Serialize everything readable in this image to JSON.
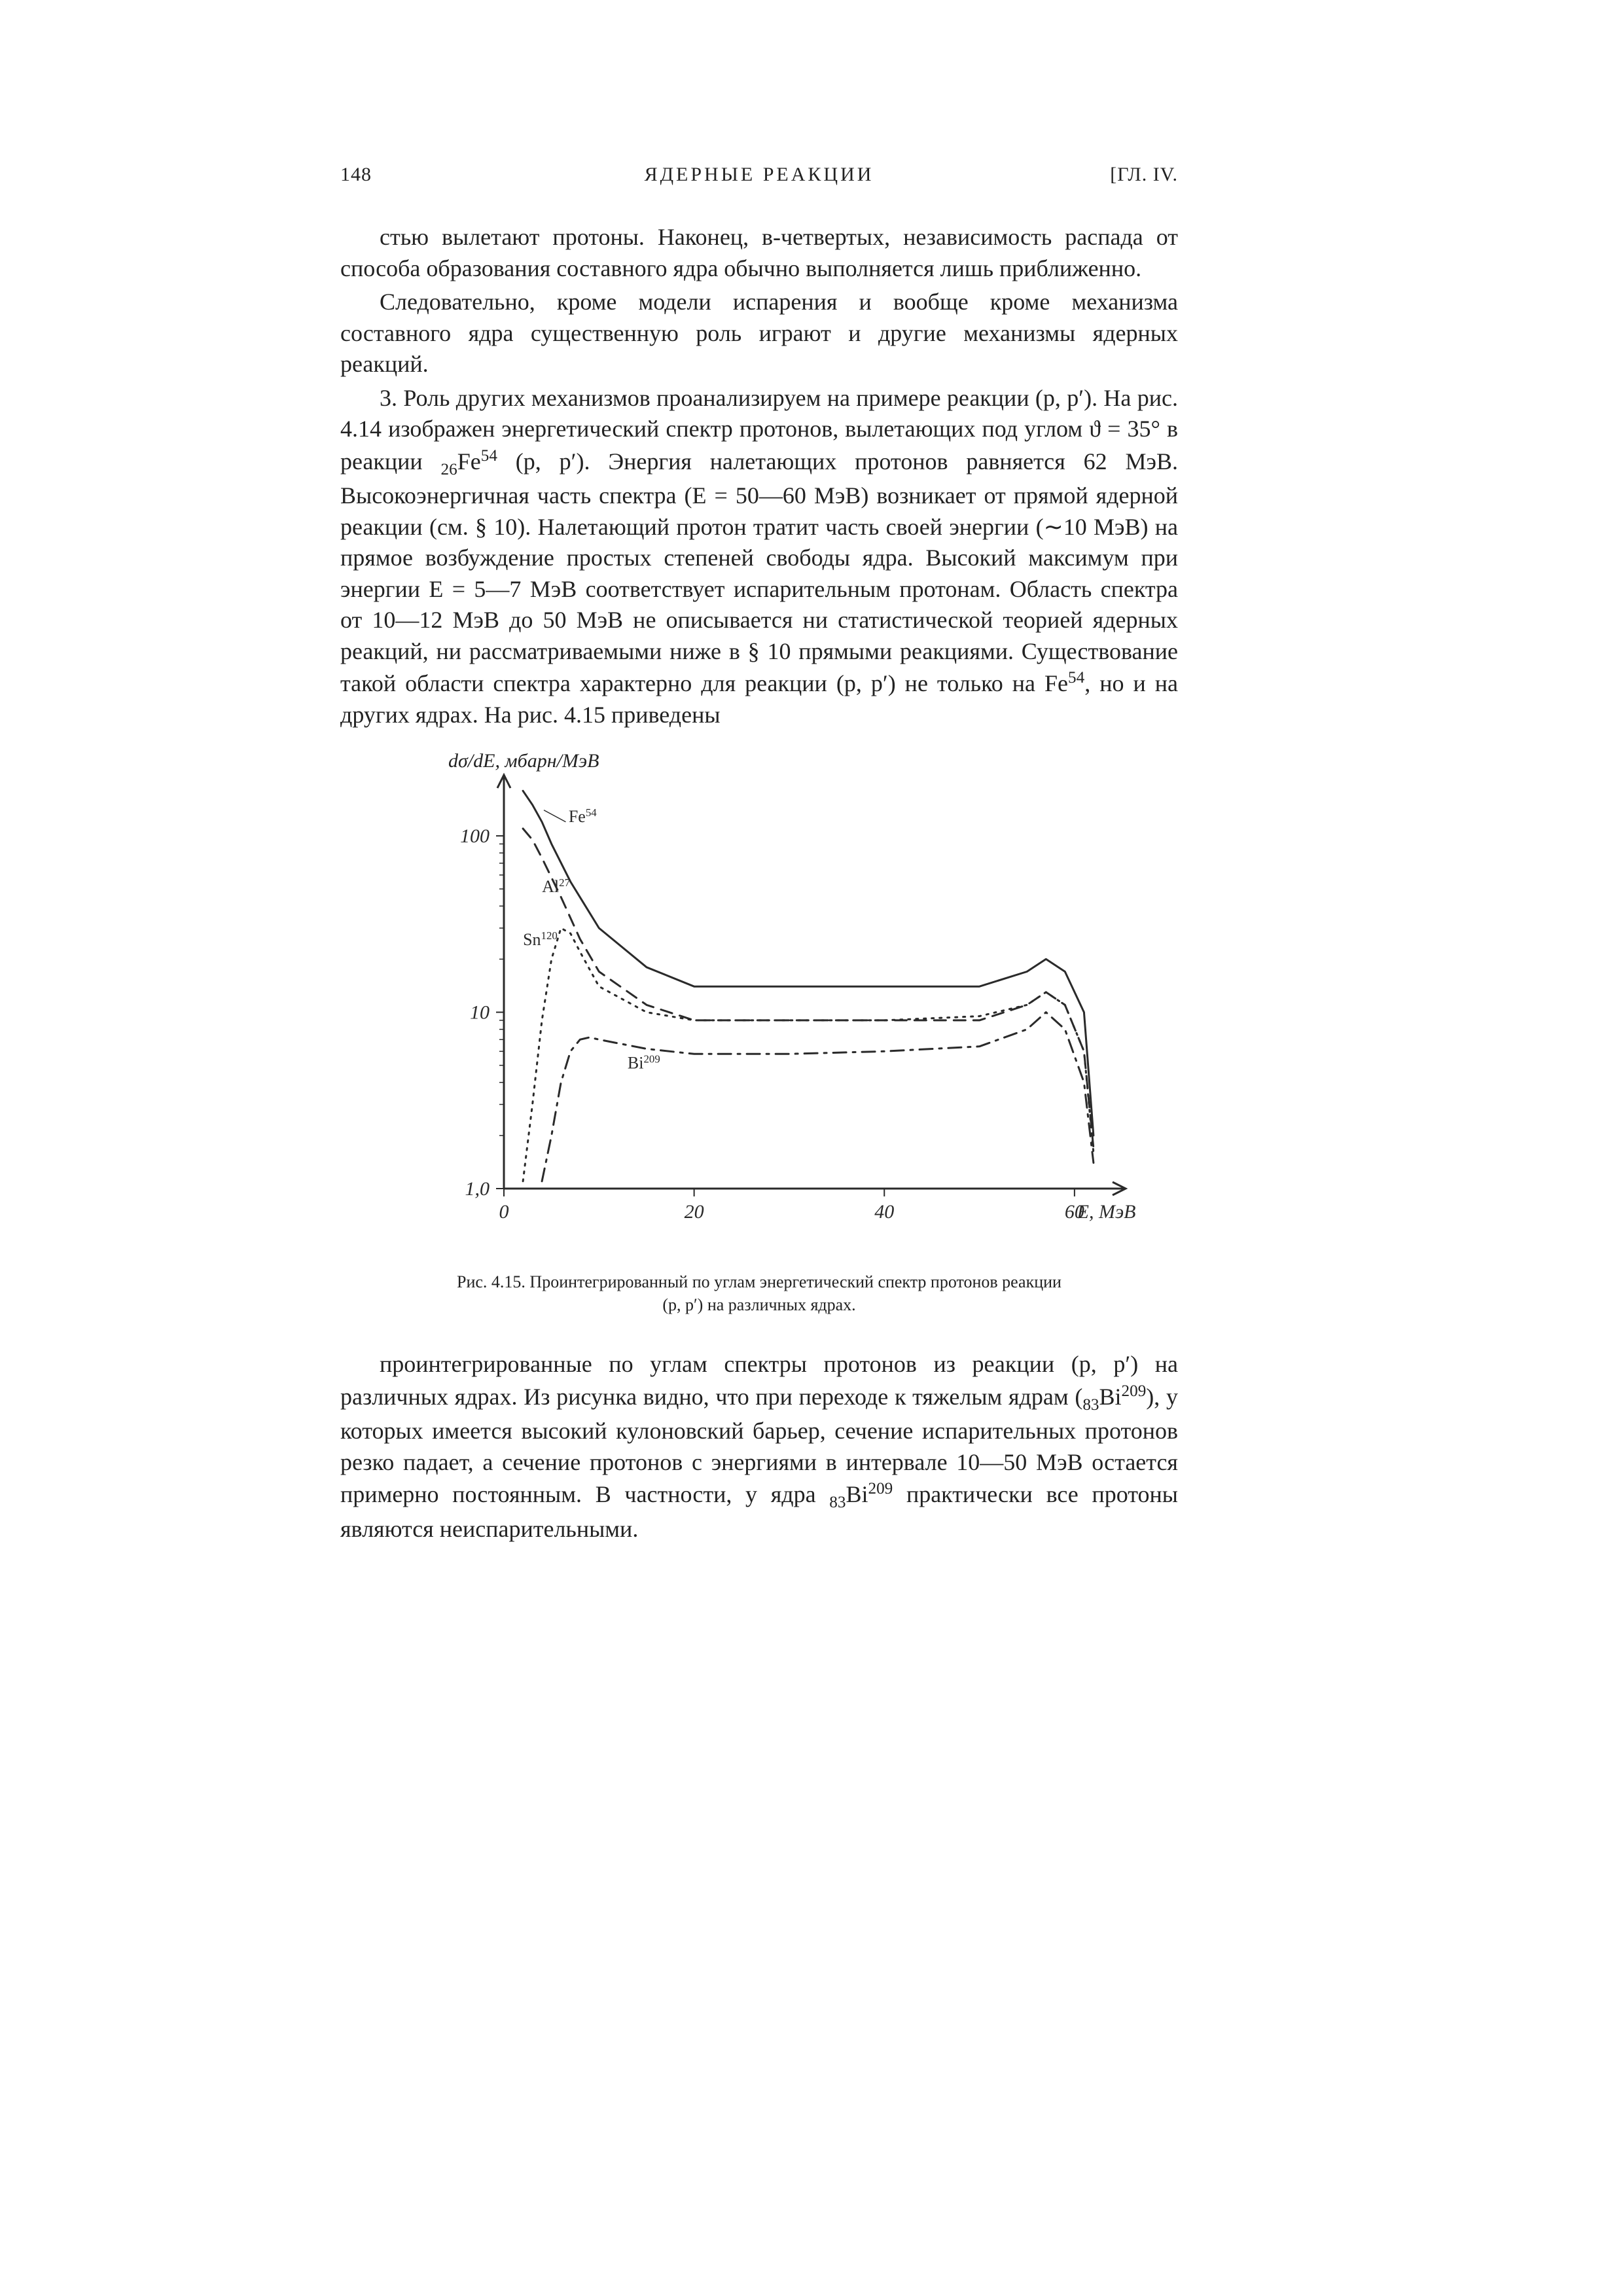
{
  "header": {
    "page_number": "148",
    "running_title": "ЯДЕРНЫЕ РЕАКЦИИ",
    "chapter_mark": "[ГЛ. IV."
  },
  "para1": "стью вылетают протоны. Наконец, в-четвертых, независимость распада от способа образования составного ядра обычно выполняется лишь приближенно.",
  "para2": "Следовательно, кроме модели испарения и вообще кроме механизма составного ядра существенную роль играют и другие механизмы ядерных реакций.",
  "para3_a": "3. Роль других механизмов проанализируем на примере реакции (p, p′). На рис. 4.14 изображен энергетический спектр протонов, вылетающих под углом ϑ = 35° в реакции ",
  "para3_nuc1_pre": "26",
  "para3_nuc1_el": "Fe",
  "para3_nuc1_sup": "54",
  "para3_b": " (p, p′). Энергия налетающих протонов равняется 62 МэВ. Высокоэнергичная часть спектра (E = 50—60 МэВ) возникает от прямой ядерной реакции (см. § 10). Налетающий протон тратит часть своей энергии (∼10 МэВ) на прямое возбуждение простых степеней свободы ядра. Высокий максимум при энергии E = 5—7 МэВ соответствует испарительным протонам. Область спектра от 10—12 МэВ до 50 МэВ не описывается ни статистической теорией ядерных реакций, ни рассматриваемыми ниже в § 10 прямыми реакциями. Существование такой области спектра характерно для реакции (p, p′) не только на Fe",
  "para3_sup2": "54",
  "para3_c": ", но и на других ядрах. На рис. 4.15 приведены",
  "chart": {
    "type": "line",
    "y_axis_label": "dσ/dE, мбарн/МэВ",
    "x_axis_label": "E, МэВ",
    "x_ticks": [
      "0",
      "20",
      "40",
      "60"
    ],
    "y_ticks": [
      "1,0",
      "10",
      "100"
    ],
    "y_scale": "log",
    "xlim": [
      0,
      64
    ],
    "ylim": [
      1,
      200
    ],
    "curve_labels": {
      "fe": "Fe⁵⁴",
      "al": "Al²⁷",
      "sn": "Sn¹²⁰",
      "bi": "Bi²⁰⁹"
    },
    "colors": {
      "axis": "#2a2a2a",
      "fe": "#2a2a2a",
      "al": "#2a2a2a",
      "sn": "#2a2a2a",
      "bi": "#2a2a2a",
      "bg": "#ffffff"
    },
    "stroke_width": 3,
    "font_size_axis": 30,
    "font_size_curve_label": 26,
    "series": {
      "fe": {
        "style": "solid",
        "points": [
          [
            2,
            180
          ],
          [
            3,
            150
          ],
          [
            4,
            120
          ],
          [
            5,
            90
          ],
          [
            7,
            55
          ],
          [
            10,
            30
          ],
          [
            15,
            18
          ],
          [
            20,
            14
          ],
          [
            30,
            14
          ],
          [
            40,
            14
          ],
          [
            50,
            14
          ],
          [
            55,
            17
          ],
          [
            57,
            20
          ],
          [
            59,
            17
          ],
          [
            61,
            10
          ],
          [
            62,
            2
          ]
        ]
      },
      "al": {
        "style": "dash",
        "points": [
          [
            2,
            110
          ],
          [
            3,
            95
          ],
          [
            4,
            75
          ],
          [
            6,
            45
          ],
          [
            8,
            26
          ],
          [
            10,
            17
          ],
          [
            15,
            11
          ],
          [
            20,
            9
          ],
          [
            30,
            9
          ],
          [
            40,
            9
          ],
          [
            50,
            9
          ],
          [
            55,
            11
          ],
          [
            57,
            13
          ],
          [
            59,
            11
          ],
          [
            61,
            6
          ],
          [
            62,
            1.7
          ]
        ]
      },
      "sn": {
        "style": "dot",
        "points": [
          [
            2,
            1.1
          ],
          [
            3,
            3
          ],
          [
            4,
            9
          ],
          [
            5,
            20
          ],
          [
            6,
            30
          ],
          [
            7,
            28
          ],
          [
            8,
            22
          ],
          [
            10,
            14
          ],
          [
            15,
            10
          ],
          [
            20,
            9
          ],
          [
            30,
            9
          ],
          [
            40,
            9
          ],
          [
            50,
            9.5
          ],
          [
            55,
            11
          ],
          [
            57,
            13
          ],
          [
            59,
            11
          ],
          [
            61,
            6
          ],
          [
            62,
            1.6
          ]
        ]
      },
      "bi": {
        "style": "dashdot",
        "points": [
          [
            4,
            1.1
          ],
          [
            5,
            2
          ],
          [
            6,
            4
          ],
          [
            7,
            6
          ],
          [
            8,
            7
          ],
          [
            9,
            7.2
          ],
          [
            10,
            7
          ],
          [
            15,
            6.2
          ],
          [
            20,
            5.8
          ],
          [
            30,
            5.8
          ],
          [
            40,
            6
          ],
          [
            50,
            6.4
          ],
          [
            55,
            8
          ],
          [
            57,
            10
          ],
          [
            59,
            8
          ],
          [
            61,
            4
          ],
          [
            62,
            1.4
          ]
        ]
      }
    }
  },
  "caption_a": "Рис. 4.15. Проинтегрированный по углам энергетический спектр протонов реакции",
  "caption_b": "(p, p′) на различных ядрах.",
  "para4_a": "проинтегрированные по углам спектры протонов из реакции (p, p′) на различных ядрах. Из рисунка видно, что при переходе к тяжелым ядрам (",
  "para4_sub": "83",
  "para4_el": "Bi",
  "para4_sup": "209",
  "para4_b": "), у которых имеется высокий кулоновский барьер, сечение испарительных протонов резко падает, а сечение протонов с энергиями в интервале 10—50 МэВ остается примерно постоянным. В частности, у ядра ",
  "para4_sub2": "83",
  "para4_el2": "Bi",
  "para4_sup2": "209",
  "para4_c": " практически все протоны являются неиспарительными."
}
